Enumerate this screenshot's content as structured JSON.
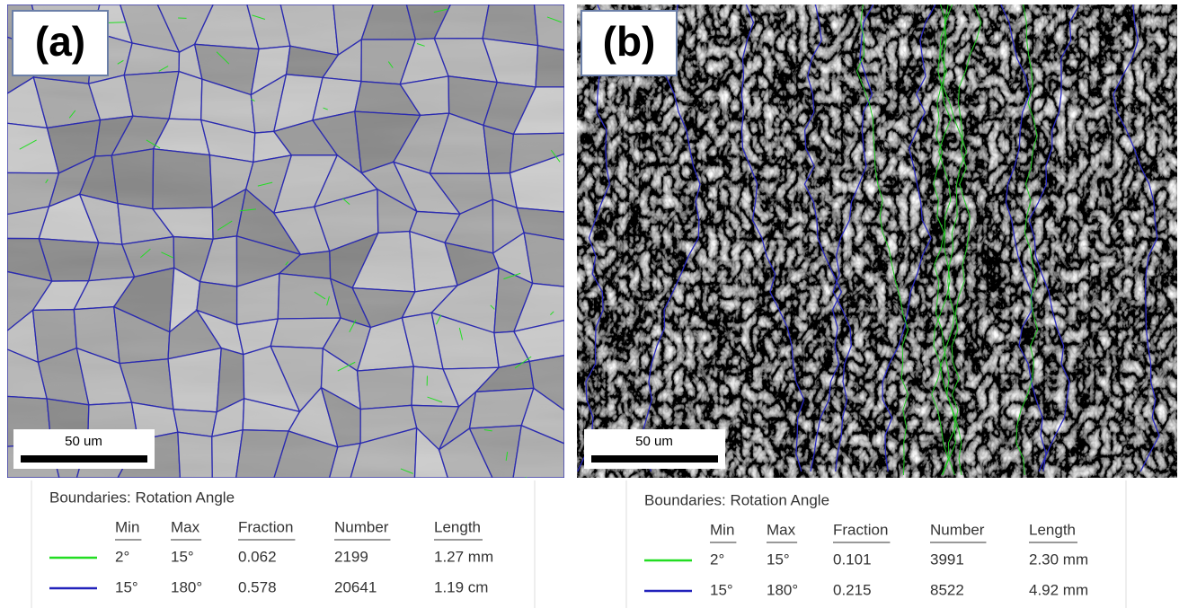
{
  "panels": [
    {
      "label": "(a)",
      "scale_bar": "50 um",
      "legend": {
        "title": "Boundaries: Rotation Angle",
        "headers": [
          "Min",
          "Max",
          "Fraction",
          "Number",
          "Length"
        ],
        "rows": [
          {
            "color": "#22dd22",
            "cells": [
              "2°",
              "15°",
              "0.062",
              "2199",
              "1.27 mm"
            ]
          },
          {
            "color": "#2222bb",
            "cells": [
              "15°",
              "180°",
              "0.578",
              "20641",
              "1.19 cm"
            ]
          }
        ]
      }
    },
    {
      "label": "(b)",
      "scale_bar": "50 um",
      "legend": {
        "title": "Boundaries: Rotation Angle",
        "headers": [
          "Min",
          "Max",
          "Fraction",
          "Number",
          "Length"
        ],
        "rows": [
          {
            "color": "#22dd22",
            "cells": [
              "2°",
              "15°",
              "0.101",
              "3991",
              "2.30 mm"
            ]
          },
          {
            "color": "#2222bb",
            "cells": [
              "15°",
              "180°",
              "0.215",
              "8522",
              "4.92 mm"
            ]
          }
        ]
      }
    }
  ]
}
